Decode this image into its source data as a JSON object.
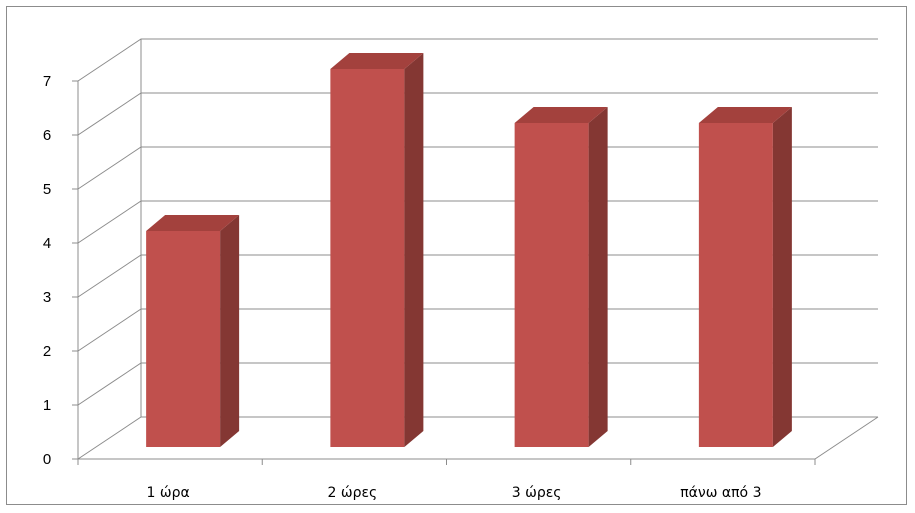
{
  "chart_data": {
    "type": "bar",
    "categories": [
      "1 ώρα",
      "2 ώρες",
      "3 ώρες",
      "πάνω από 3"
    ],
    "values": [
      4,
      7,
      6,
      6
    ],
    "title": "",
    "xlabel": "",
    "ylabel": "",
    "ylim": [
      0,
      7
    ],
    "yticks": [
      0,
      1,
      2,
      3,
      4,
      5,
      6,
      7
    ],
    "grid": true,
    "legend": "none",
    "colors": {
      "bar_front": "#c0504d",
      "bar_side": "#843733",
      "bar_top": "#a3413d",
      "grid": "#8c8c8c",
      "axis": "#8c8c8c"
    }
  }
}
